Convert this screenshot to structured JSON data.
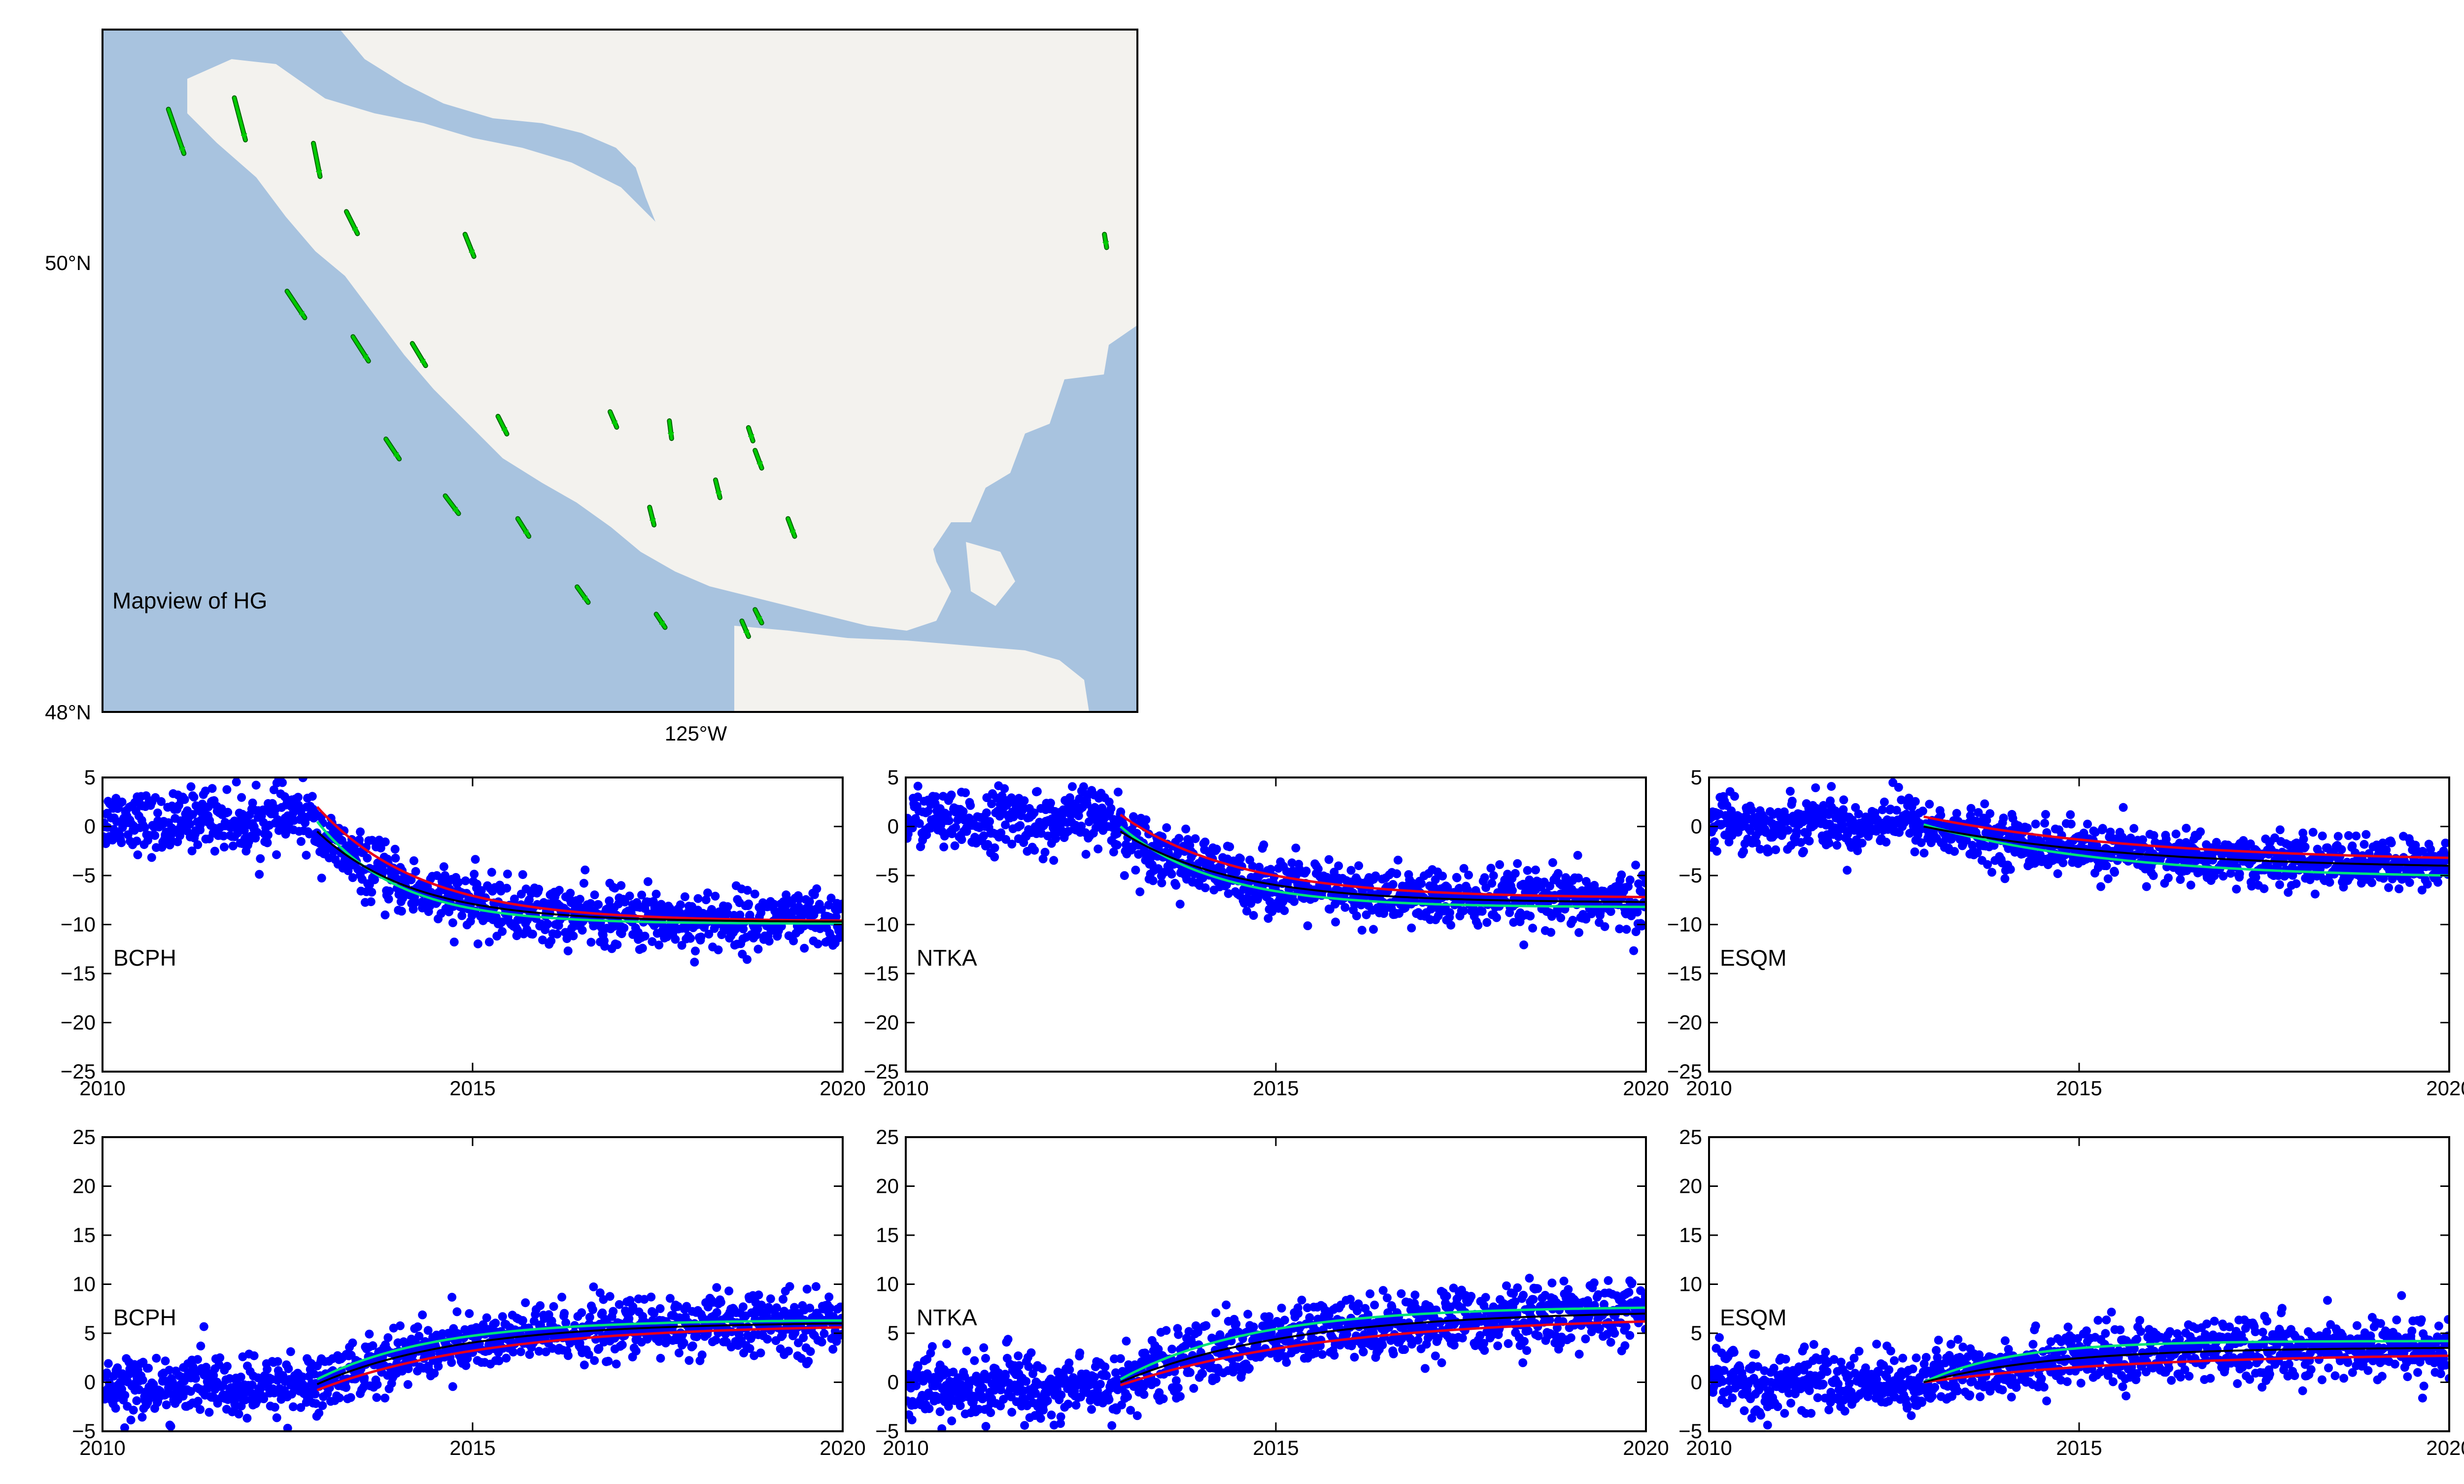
{
  "colors": {
    "data_points": "#0000ff",
    "model_red": "#e8001c",
    "model_green": "#00e27a",
    "model_black": "#000000",
    "ocean": "#a8c3df",
    "land": "#f3f2ee",
    "vectors": "#00cc00"
  },
  "map": {
    "label": "Mapview of HG",
    "lat_ticks": [
      "50°N",
      "48°N"
    ],
    "lon_ticks": [
      "125°W"
    ],
    "vectors": [
      {
        "lon": -128.2,
        "lat": 50.65,
        "de": 0.35,
        "dn": -1.0
      },
      {
        "lon": -127.7,
        "lat": 50.7,
        "de": 0.25,
        "dn": -0.95
      },
      {
        "lon": -127.1,
        "lat": 50.5,
        "de": 0.15,
        "dn": -0.75
      },
      {
        "lon": -126.85,
        "lat": 50.2,
        "de": 0.25,
        "dn": -0.5
      },
      {
        "lon": -125.95,
        "lat": 50.1,
        "de": 0.2,
        "dn": -0.5
      },
      {
        "lon": -121.1,
        "lat": 50.1,
        "de": 0.05,
        "dn": -0.3
      },
      {
        "lon": -127.3,
        "lat": 49.85,
        "de": 0.4,
        "dn": -0.6
      },
      {
        "lon": -126.8,
        "lat": 49.65,
        "de": 0.35,
        "dn": -0.55
      },
      {
        "lon": -126.35,
        "lat": 49.62,
        "de": 0.3,
        "dn": -0.5
      },
      {
        "lon": -125.7,
        "lat": 49.3,
        "de": 0.2,
        "dn": -0.4
      },
      {
        "lon": -124.85,
        "lat": 49.32,
        "de": 0.15,
        "dn": -0.35
      },
      {
        "lon": -126.55,
        "lat": 49.2,
        "de": 0.3,
        "dn": -0.45
      },
      {
        "lon": -124.4,
        "lat": 49.28,
        "de": 0.05,
        "dn": -0.4
      },
      {
        "lon": -124.05,
        "lat": 49.02,
        "de": 0.1,
        "dn": -0.4
      },
      {
        "lon": -123.8,
        "lat": 49.25,
        "de": 0.1,
        "dn": -0.3
      },
      {
        "lon": -123.75,
        "lat": 49.15,
        "de": 0.15,
        "dn": -0.4
      },
      {
        "lon": -126.1,
        "lat": 48.95,
        "de": 0.3,
        "dn": -0.4
      },
      {
        "lon": -125.55,
        "lat": 48.85,
        "de": 0.25,
        "dn": -0.4
      },
      {
        "lon": -124.55,
        "lat": 48.9,
        "de": 0.1,
        "dn": -0.4
      },
      {
        "lon": -123.5,
        "lat": 48.85,
        "de": 0.15,
        "dn": -0.4
      },
      {
        "lon": -125.1,
        "lat": 48.55,
        "de": 0.25,
        "dn": -0.35
      },
      {
        "lon": -124.5,
        "lat": 48.43,
        "de": 0.2,
        "dn": -0.3
      },
      {
        "lon": -123.85,
        "lat": 48.4,
        "de": 0.15,
        "dn": -0.35
      },
      {
        "lon": -123.75,
        "lat": 48.45,
        "de": 0.15,
        "dn": -0.3
      }
    ]
  },
  "chart_data": [
    {
      "type": "scatter",
      "row": 1,
      "col": 1,
      "station": "BCPH",
      "xlim": [
        2010,
        2020
      ],
      "ylim": [
        -25,
        5
      ],
      "xticks": [
        "2010",
        "2015",
        "2020"
      ],
      "yticks": [
        "5",
        "0",
        "−5",
        "−10",
        "−15",
        "−20",
        "−25"
      ],
      "pre_level": 0.5,
      "pre_trend": 0.05,
      "event_year": 2012.9,
      "noise": 1.5,
      "series": [
        {
          "color": "red",
          "y_event": 2.0,
          "y_2020": -9.6,
          "tau": 1.4
        },
        {
          "color": "green",
          "y_event": 0.5,
          "y_2020": -9.9,
          "tau": 1.1
        },
        {
          "color": "black",
          "y_event": -0.5,
          "y_2020": -9.7,
          "tau": 1.3
        }
      ]
    },
    {
      "type": "scatter",
      "row": 1,
      "col": 2,
      "station": "NTKA",
      "xlim": [
        2010,
        2020
      ],
      "ylim": [
        -25,
        5
      ],
      "xticks": [
        "2010",
        "2015",
        "2020"
      ],
      "yticks": [
        "5",
        "0",
        "−5",
        "−10",
        "−15",
        "−20",
        "−25"
      ],
      "pre_level": 0.5,
      "pre_trend": 0.05,
      "event_year": 2012.9,
      "noise": 1.5,
      "series": [
        {
          "color": "red",
          "y_event": 1.2,
          "y_2020": -7.2,
          "tau": 1.6
        },
        {
          "color": "green",
          "y_event": 0.0,
          "y_2020": -8.2,
          "tau": 1.3
        },
        {
          "color": "black",
          "y_event": -0.5,
          "y_2020": -7.7,
          "tau": 1.5
        }
      ]
    },
    {
      "type": "scatter",
      "row": 1,
      "col": 3,
      "station": "ESQM",
      "xlim": [
        2010,
        2020
      ],
      "ylim": [
        -25,
        5
      ],
      "xticks": [
        "2010",
        "2015",
        "2020"
      ],
      "yticks": [
        "5",
        "0",
        "−5",
        "−10",
        "−15",
        "−20",
        "−25"
      ],
      "pre_level": 0.3,
      "pre_trend": 0.05,
      "event_year": 2012.9,
      "noise": 1.3,
      "series": [
        {
          "color": "red",
          "y_event": 1.0,
          "y_2020": -3.2,
          "tau": 3.0
        },
        {
          "color": "green",
          "y_event": 0.2,
          "y_2020": -5.0,
          "tau": 2.5
        },
        {
          "color": "black",
          "y_event": 0.0,
          "y_2020": -4.0,
          "tau": 2.8
        }
      ]
    },
    {
      "type": "scatter",
      "row": 2,
      "col": 1,
      "station": "BCPH",
      "xlim": [
        2010,
        2020
      ],
      "ylim": [
        -5,
        25
      ],
      "xticks": [
        "2010",
        "2015",
        "2020"
      ],
      "yticks": [
        "25",
        "20",
        "15",
        "10",
        "5",
        "0",
        "−5"
      ],
      "pre_level": -0.5,
      "pre_trend": 0.0,
      "event_year": 2012.9,
      "noise": 1.5,
      "series": [
        {
          "color": "red",
          "y_event": -0.8,
          "y_2020": 5.6,
          "tau": 2.3
        },
        {
          "color": "green",
          "y_event": 0.3,
          "y_2020": 6.3,
          "tau": 1.6
        },
        {
          "color": "black",
          "y_event": -0.2,
          "y_2020": 6.0,
          "tau": 1.9
        }
      ]
    },
    {
      "type": "scatter",
      "row": 2,
      "col": 2,
      "station": "NTKA",
      "xlim": [
        2010,
        2020
      ],
      "ylim": [
        -5,
        25
      ],
      "xticks": [
        "2010",
        "2015",
        "2020"
      ],
      "yticks": [
        "25",
        "20",
        "15",
        "10",
        "5",
        "0",
        "−5"
      ],
      "pre_level": -0.5,
      "pre_trend": 0.0,
      "event_year": 2012.9,
      "noise": 1.6,
      "series": [
        {
          "color": "red",
          "y_event": -0.3,
          "y_2020": 6.2,
          "tau": 2.8
        },
        {
          "color": "green",
          "y_event": 0.3,
          "y_2020": 7.6,
          "tau": 1.8
        },
        {
          "color": "black",
          "y_event": 0.0,
          "y_2020": 7.0,
          "tau": 2.3
        }
      ]
    },
    {
      "type": "scatter",
      "row": 2,
      "col": 3,
      "station": "ESQM",
      "xlim": [
        2010,
        2020
      ],
      "ylim": [
        -5,
        25
      ],
      "xticks": [
        "2010",
        "2015",
        "2020"
      ],
      "yticks": [
        "25",
        "20",
        "15",
        "10",
        "5",
        "0",
        "−5"
      ],
      "pre_level": 0.0,
      "pre_trend": 0.0,
      "event_year": 2012.9,
      "noise": 1.5,
      "series": [
        {
          "color": "red",
          "y_event": 0.0,
          "y_2020": 2.7,
          "tau": 2.8
        },
        {
          "color": "green",
          "y_event": 0.0,
          "y_2020": 4.2,
          "tau": 1.2
        },
        {
          "color": "black",
          "y_event": 0.0,
          "y_2020": 3.5,
          "tau": 1.8
        }
      ]
    }
  ]
}
